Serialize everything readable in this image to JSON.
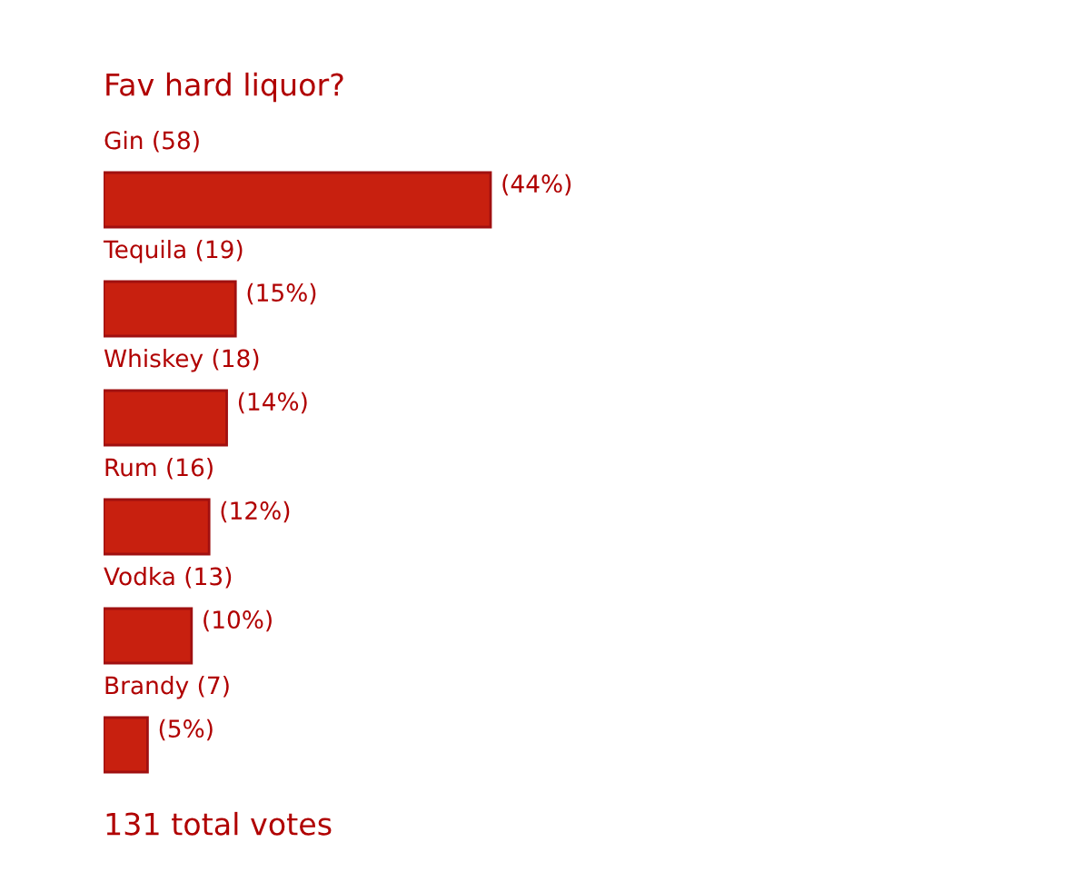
{
  "chart_data": {
    "type": "bar",
    "orientation": "horizontal",
    "title": "Fav hard liquor?",
    "categories": [
      "Gin (58)",
      "Tequila (19)",
      "Whiskey (18)",
      "Rum (16)",
      "Vodka (13)",
      "Brandy (7)"
    ],
    "values": [
      44,
      15,
      14,
      12,
      10,
      5
    ],
    "value_labels": [
      "(44%)",
      "(15%)",
      "(14%)",
      "(12%)",
      "(10%)",
      "(5%)"
    ],
    "color": "#c8200f",
    "tick_labels": false,
    "legend": false,
    "annotations": [
      "131 total votes"
    ]
  }
}
